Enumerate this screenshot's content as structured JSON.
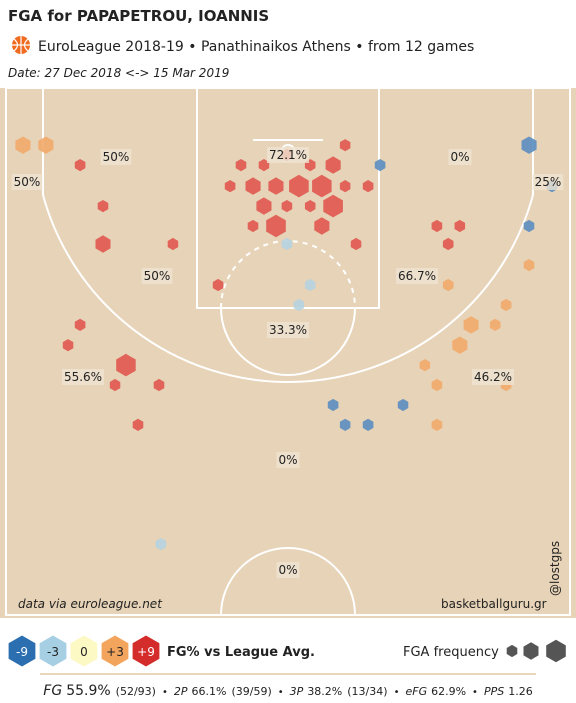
{
  "chart_data": {
    "type": "hexbin",
    "title": "FGA for PAPAPETROU, IOANNIS",
    "subtitle": "EuroLeague 2018-19 • Panathinaikos Athens • from  12 games",
    "date": "Date: 27 Dec 2018 <-> 15 Mar 2019",
    "source": "data via euroleague.net",
    "site": "basketballguru.gr",
    "handle": "@lostgps",
    "zone_labels": [
      "50%",
      "72.1%",
      "0%",
      "50%",
      "25%",
      "50%",
      "66.7%",
      "33.3%",
      "55.6%",
      "46.2%",
      "0%",
      "0%"
    ],
    "color_legend": {
      "items": [
        {
          "label": "-9",
          "color": "#2c6fb0"
        },
        {
          "label": "-3",
          "color": "#a6cfe3"
        },
        {
          "label": "0",
          "color": "#fdf9c4"
        },
        {
          "label": "+3",
          "color": "#f3a55e"
        },
        {
          "label": "+9",
          "color": "#d42b2b"
        }
      ],
      "title": "FG% vs League Avg."
    },
    "size_legend": {
      "title": "FGA frequency",
      "color": "#555555",
      "sizes": [
        1,
        2,
        3
      ]
    },
    "hex_colors": [
      "#5a8dc0",
      "#b5d3e1",
      "#f8f2c4",
      "#f2aa6c",
      "#e0574f"
    ],
    "hexes": [
      {
        "x": 0.45,
        "y": 1.52,
        "size": 2,
        "level": 3
      },
      {
        "x": 1.06,
        "y": 1.52,
        "size": 2,
        "level": 3
      },
      {
        "x": 1.97,
        "y": 2.05,
        "size": 1,
        "level": 4
      },
      {
        "x": 2.58,
        "y": 3.14,
        "size": 1,
        "level": 4
      },
      {
        "x": 2.58,
        "y": 4.15,
        "size": 2,
        "level": 4
      },
      {
        "x": 4.44,
        "y": 4.15,
        "size": 1,
        "level": 4
      },
      {
        "x": 5.64,
        "y": 5.24,
        "size": 1,
        "level": 4
      },
      {
        "x": 1.97,
        "y": 6.3,
        "size": 1,
        "level": 4
      },
      {
        "x": 1.65,
        "y": 6.84,
        "size": 1,
        "level": 4
      },
      {
        "x": 3.19,
        "y": 7.37,
        "size": 3,
        "level": 4
      },
      {
        "x": 2.9,
        "y": 7.9,
        "size": 1,
        "level": 4
      },
      {
        "x": 4.07,
        "y": 7.9,
        "size": 1,
        "level": 4
      },
      {
        "x": 3.51,
        "y": 8.96,
        "size": 1,
        "level": 4
      },
      {
        "x": 9.02,
        "y": 1.52,
        "size": 1,
        "level": 4
      },
      {
        "x": 6.25,
        "y": 2.05,
        "size": 1,
        "level": 4
      },
      {
        "x": 6.86,
        "y": 2.05,
        "size": 1,
        "level": 4
      },
      {
        "x": 7.47,
        "y": 1.78,
        "size": 1,
        "level": 4
      },
      {
        "x": 8.09,
        "y": 2.05,
        "size": 1,
        "level": 4
      },
      {
        "x": 8.7,
        "y": 2.05,
        "size": 2,
        "level": 4
      },
      {
        "x": 5.96,
        "y": 2.61,
        "size": 1,
        "level": 4
      },
      {
        "x": 6.57,
        "y": 2.61,
        "size": 2,
        "level": 4
      },
      {
        "x": 7.18,
        "y": 2.61,
        "size": 2,
        "level": 4
      },
      {
        "x": 7.79,
        "y": 2.61,
        "size": 3,
        "level": 4
      },
      {
        "x": 8.4,
        "y": 2.61,
        "size": 3,
        "level": 4
      },
      {
        "x": 9.02,
        "y": 2.61,
        "size": 1,
        "level": 4
      },
      {
        "x": 9.63,
        "y": 2.61,
        "size": 1,
        "level": 4
      },
      {
        "x": 6.86,
        "y": 3.14,
        "size": 2,
        "level": 4
      },
      {
        "x": 7.47,
        "y": 3.14,
        "size": 1,
        "level": 4
      },
      {
        "x": 8.09,
        "y": 3.14,
        "size": 1,
        "level": 4
      },
      {
        "x": 8.7,
        "y": 3.14,
        "size": 3,
        "level": 4
      },
      {
        "x": 7.18,
        "y": 3.67,
        "size": 3,
        "level": 4
      },
      {
        "x": 6.57,
        "y": 3.67,
        "size": 1,
        "level": 4
      },
      {
        "x": 8.4,
        "y": 3.67,
        "size": 2,
        "level": 4
      },
      {
        "x": 9.31,
        "y": 4.15,
        "size": 1,
        "level": 4
      },
      {
        "x": 11.46,
        "y": 3.67,
        "size": 1,
        "level": 4
      },
      {
        "x": 12.07,
        "y": 3.67,
        "size": 1,
        "level": 4
      },
      {
        "x": 11.76,
        "y": 4.15,
        "size": 1,
        "level": 4
      },
      {
        "x": 9.95,
        "y": 2.05,
        "size": 1,
        "level": 0
      },
      {
        "x": 13.91,
        "y": 1.52,
        "size": 2,
        "level": 0
      },
      {
        "x": 14.52,
        "y": 2.61,
        "size": 1,
        "level": 0
      },
      {
        "x": 13.91,
        "y": 3.67,
        "size": 1,
        "level": 0
      },
      {
        "x": 7.47,
        "y": 4.15,
        "size": 1,
        "level": 1
      },
      {
        "x": 8.09,
        "y": 5.24,
        "size": 1,
        "level": 1
      },
      {
        "x": 7.79,
        "y": 5.77,
        "size": 1,
        "level": 1
      },
      {
        "x": 4.12,
        "y": 12.13,
        "size": 1,
        "level": 1
      },
      {
        "x": 13.91,
        "y": 4.71,
        "size": 1,
        "level": 3
      },
      {
        "x": 11.76,
        "y": 5.24,
        "size": 1,
        "level": 3
      },
      {
        "x": 13.3,
        "y": 5.77,
        "size": 1,
        "level": 3
      },
      {
        "x": 13.01,
        "y": 6.3,
        "size": 1,
        "level": 3
      },
      {
        "x": 12.37,
        "y": 6.3,
        "size": 2,
        "level": 3
      },
      {
        "x": 12.07,
        "y": 6.84,
        "size": 2,
        "level": 3
      },
      {
        "x": 11.14,
        "y": 7.37,
        "size": 1,
        "level": 3
      },
      {
        "x": 11.46,
        "y": 7.9,
        "size": 1,
        "level": 3
      },
      {
        "x": 13.3,
        "y": 7.9,
        "size": 1,
        "level": 3
      },
      {
        "x": 11.46,
        "y": 8.96,
        "size": 1,
        "level": 3
      },
      {
        "x": 8.7,
        "y": 8.43,
        "size": 1,
        "level": 0
      },
      {
        "x": 10.56,
        "y": 8.43,
        "size": 1,
        "level": 0
      },
      {
        "x": 9.02,
        "y": 8.96,
        "size": 1,
        "level": 0
      },
      {
        "x": 9.63,
        "y": 8.96,
        "size": 1,
        "level": 0
      }
    ],
    "stats": [
      {
        "label": "FG",
        "value": "55.9%",
        "detail": "(52/93)"
      },
      {
        "label": "2P",
        "value": "66.1%",
        "detail": "(39/59)"
      },
      {
        "label": "3P",
        "value": "38.2%",
        "detail": "(13/34)"
      },
      {
        "label": "eFG",
        "value": "62.9%"
      },
      {
        "label": "PPS",
        "value": "1.26"
      }
    ],
    "separator": "•"
  }
}
